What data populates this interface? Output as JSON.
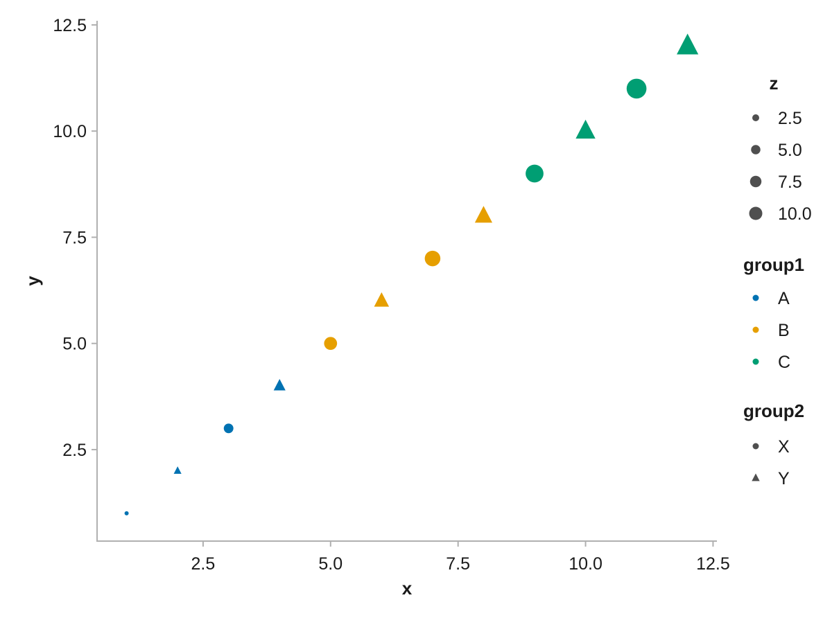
{
  "chart_data": {
    "type": "scatter",
    "title": "",
    "xlabel": "x",
    "ylabel": "y",
    "x_axis": {
      "label": "x",
      "tick_values": [
        2.5,
        5.0,
        7.5,
        10.0,
        12.5
      ],
      "tick_labels": [
        "2.5",
        "5.0",
        "7.5",
        "10.0",
        "12.5"
      ],
      "range": [
        0.4,
        12.6
      ],
      "grid": false
    },
    "y_axis": {
      "label": "y",
      "tick_values": [
        2.5,
        5.0,
        7.5,
        10.0,
        12.5
      ],
      "tick_labels": [
        "2.5",
        "5.0",
        "7.5",
        "10.0",
        "12.5"
      ],
      "range": [
        0.35,
        12.6
      ],
      "grid": false
    },
    "points": [
      {
        "x": 1,
        "y": 1,
        "z": 1,
        "group1": "A",
        "group2": "X"
      },
      {
        "x": 2,
        "y": 2,
        "z": 2,
        "group1": "A",
        "group2": "Y"
      },
      {
        "x": 3,
        "y": 3,
        "z": 3,
        "group1": "A",
        "group2": "X"
      },
      {
        "x": 4,
        "y": 4,
        "z": 4,
        "group1": "A",
        "group2": "Y"
      },
      {
        "x": 5,
        "y": 5,
        "z": 5,
        "group1": "B",
        "group2": "X"
      },
      {
        "x": 6,
        "y": 6,
        "z": 6,
        "group1": "B",
        "group2": "Y"
      },
      {
        "x": 7,
        "y": 7,
        "z": 7,
        "group1": "B",
        "group2": "X"
      },
      {
        "x": 8,
        "y": 8,
        "z": 8,
        "group1": "B",
        "group2": "Y"
      },
      {
        "x": 9,
        "y": 9,
        "z": 9,
        "group1": "C",
        "group2": "X"
      },
      {
        "x": 10,
        "y": 10,
        "z": 10,
        "group1": "C",
        "group2": "Y"
      },
      {
        "x": 11,
        "y": 11,
        "z": 11,
        "group1": "C",
        "group2": "X"
      },
      {
        "x": 12,
        "y": 12,
        "z": 12,
        "group1": "C",
        "group2": "Y"
      }
    ],
    "color_map": {
      "A": "#0072B2",
      "B": "#E69F00",
      "C": "#009E73"
    },
    "shape_map": {
      "X": "circle",
      "Y": "triangle"
    },
    "legend": {
      "position": "right",
      "size_group": {
        "title": "z",
        "entries": [
          "2.5",
          "5.0",
          "7.5",
          "10.0"
        ],
        "values": [
          2.5,
          5.0,
          7.5,
          10.0
        ]
      },
      "color_group": {
        "title": "group1",
        "entries": [
          "A",
          "B",
          "C"
        ]
      },
      "shape_group": {
        "title": "group2",
        "entries": [
          "X",
          "Y"
        ]
      }
    },
    "style": {
      "background": "#ffffff",
      "axis_color": "#b0b0b0",
      "text_color": "#1a1a1a",
      "legend_marker_color": "#4f4f4f"
    }
  }
}
